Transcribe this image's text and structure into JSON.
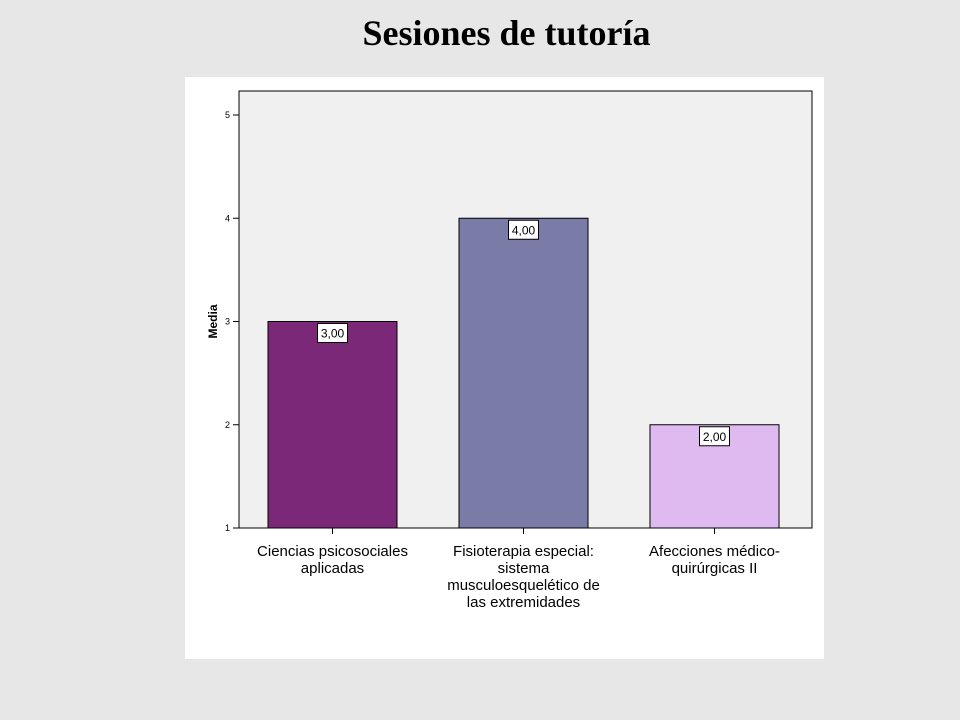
{
  "slide": {
    "title": "Sesiones de tutoría"
  },
  "chart_data": {
    "type": "bar",
    "ylabel": "Media",
    "xlabel": "",
    "ylim": [
      1,
      5
    ],
    "yticks": [
      1,
      2,
      3,
      4,
      5
    ],
    "categories": [
      [
        "Ciencias psicosociales",
        "aplicadas"
      ],
      [
        "Fisioterapia especial:",
        "sistema",
        "musculoesquelético de",
        "las extremidades"
      ],
      [
        "Afecciones médico-",
        "quirúrgicas II"
      ]
    ],
    "values": [
      3.0,
      4.0,
      2.0
    ],
    "value_labels": [
      "3,00",
      "4,00",
      "2,00"
    ],
    "bar_colors": [
      "#7b2879",
      "#7b7ba8",
      "#dfbaf1"
    ],
    "plot_background": "#f0f0f0",
    "grid": false,
    "legend": "none"
  }
}
